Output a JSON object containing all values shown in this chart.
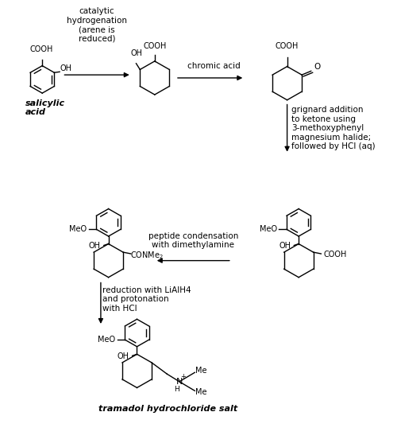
{
  "bg_color": "#ffffff",
  "text_color": "#000000",
  "figsize": [
    5.0,
    5.62
  ],
  "dpi": 100,
  "arrow1_text": "catalytic\nhydrogenation\n(arene is\nreduced)",
  "arrow2_text": "chromic acid",
  "arrow3_text": "grignard addition\nto ketone using\n3-methoxyphenyl\nmagnesium halide;\nfollowed by HCl (aq)",
  "arrow4_text": "peptide condensation\nwith dimethylamine",
  "arrow5_text": "reduction with LiAlH4\nand protonation\nwith HCl",
  "step1_label": "salicylic\nacid",
  "final_label": "tramadol hydrochloride salt"
}
